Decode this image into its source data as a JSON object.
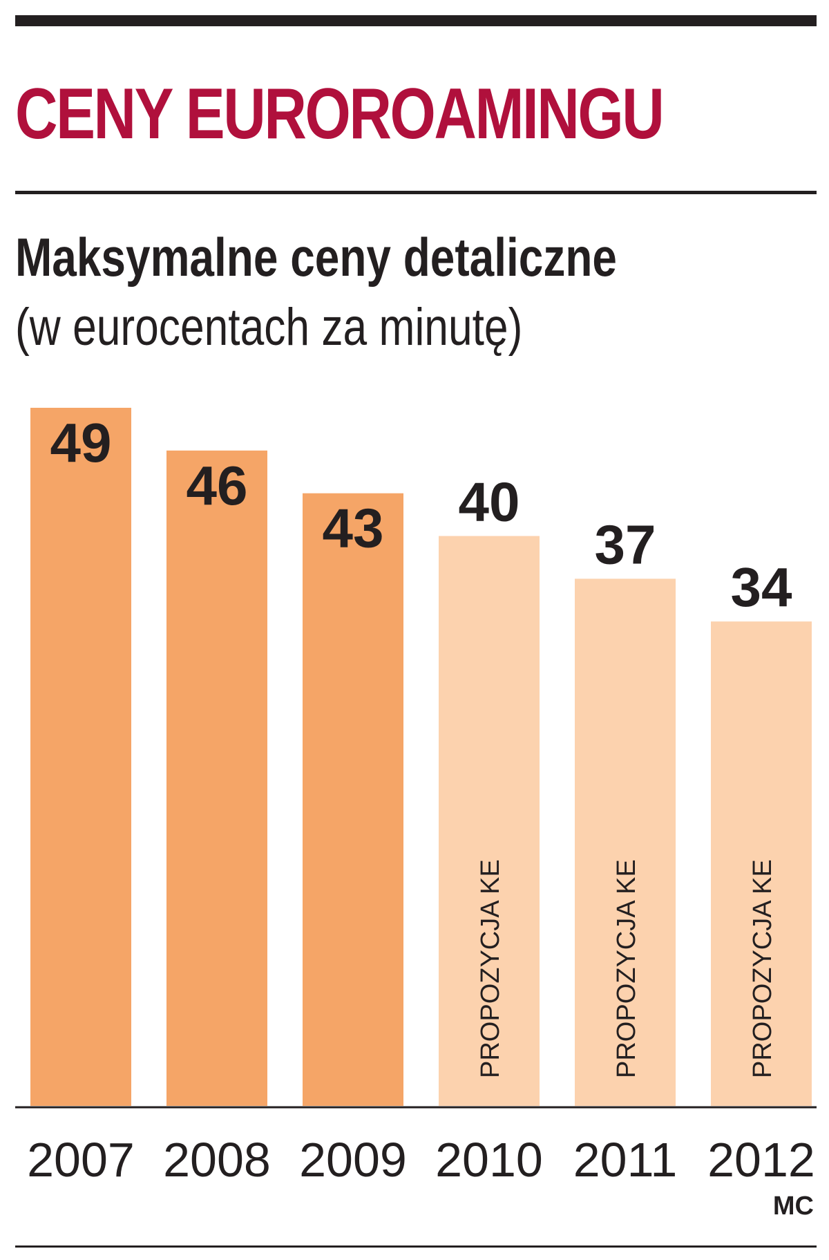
{
  "title": "CENY EUROROAMINGU",
  "subtitle": "Maksymalne ceny detaliczne",
  "unit_note": "(w eurocentach za minutę)",
  "credit": "MC",
  "colors": {
    "title": "#b0103c",
    "bar_actual": "#f5a567",
    "bar_proposal": "#fcd2ae",
    "text": "#231f20"
  },
  "chart_data": {
    "type": "bar",
    "categories": [
      "2007",
      "2008",
      "2009",
      "2010",
      "2011",
      "2012"
    ],
    "values": [
      49,
      46,
      43,
      40,
      37,
      34
    ],
    "bar_notes": [
      "",
      "",
      "",
      "PROPOZYCJA KE",
      "PROPOZYCJA KE",
      "PROPOZYCJA KE"
    ],
    "ylim": [
      0,
      49
    ],
    "grid": false,
    "legend": "none"
  }
}
